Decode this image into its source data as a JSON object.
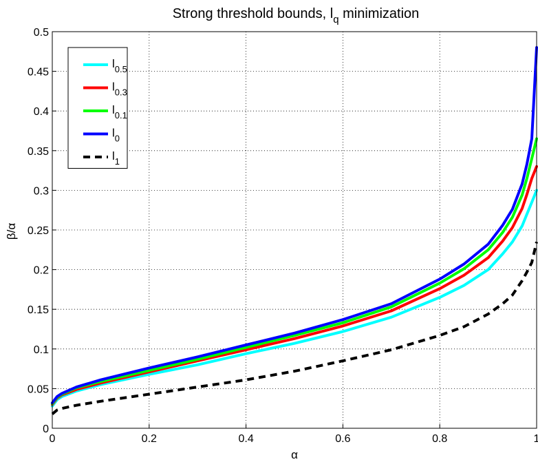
{
  "chart_data": {
    "type": "line",
    "title": {
      "main": "Strong threshold bounds, l",
      "sub": "q",
      "tail": " minimization"
    },
    "xlabel": "α",
    "ylabel": "β/α",
    "xlim": [
      0,
      1
    ],
    "ylim": [
      0,
      0.5
    ],
    "xticks": [
      0,
      0.2,
      0.4,
      0.6,
      0.8,
      1
    ],
    "xtick_labels": [
      "0",
      "0.2",
      "0.4",
      "0.6",
      "0.8",
      "1"
    ],
    "yticks": [
      0,
      0.05,
      0.1,
      0.15,
      0.2,
      0.25,
      0.3,
      0.35,
      0.4,
      0.45,
      0.5
    ],
    "ytick_labels": [
      "0",
      "0.05",
      "0.1",
      "0.15",
      "0.2",
      "0.25",
      "0.3",
      "0.35",
      "0.4",
      "0.45",
      "0.5"
    ],
    "grid": true,
    "legend_position": "top-left",
    "x": [
      0,
      0.01,
      0.02,
      0.05,
      0.1,
      0.2,
      0.3,
      0.4,
      0.5,
      0.6,
      0.7,
      0.8,
      0.85,
      0.9,
      0.93,
      0.95,
      0.97,
      0.98,
      0.99,
      1.0
    ],
    "series": [
      {
        "name": "l",
        "sub": "0.5",
        "color": "#00ffff",
        "dash": "solid",
        "values": [
          0.028,
          0.036,
          0.04,
          0.047,
          0.055,
          0.068,
          0.08,
          0.094,
          0.107,
          0.122,
          0.14,
          0.165,
          0.18,
          0.2,
          0.22,
          0.235,
          0.255,
          0.27,
          0.285,
          0.3
        ]
      },
      {
        "name": "l",
        "sub": "0.3",
        "color": "#ff0000",
        "dash": "solid",
        "values": [
          0.03,
          0.038,
          0.042,
          0.049,
          0.057,
          0.071,
          0.085,
          0.099,
          0.113,
          0.129,
          0.148,
          0.176,
          0.193,
          0.215,
          0.236,
          0.253,
          0.277,
          0.295,
          0.315,
          0.33
        ]
      },
      {
        "name": "l",
        "sub": "0.1",
        "color": "#00ff00",
        "dash": "solid",
        "values": [
          0.031,
          0.039,
          0.043,
          0.051,
          0.059,
          0.073,
          0.087,
          0.102,
          0.117,
          0.133,
          0.153,
          0.183,
          0.201,
          0.225,
          0.247,
          0.266,
          0.294,
          0.315,
          0.34,
          0.365
        ]
      },
      {
        "name": "l",
        "sub": "0",
        "color": "#0000ff",
        "dash": "solid",
        "values": [
          0.032,
          0.04,
          0.044,
          0.052,
          0.061,
          0.076,
          0.09,
          0.105,
          0.12,
          0.137,
          0.157,
          0.188,
          0.207,
          0.232,
          0.256,
          0.276,
          0.308,
          0.333,
          0.365,
          0.48
        ]
      },
      {
        "name": "l",
        "sub": "1",
        "color": "#000000",
        "dash": "dashed",
        "values": [
          0.018,
          0.023,
          0.025,
          0.029,
          0.034,
          0.043,
          0.052,
          0.061,
          0.072,
          0.085,
          0.099,
          0.117,
          0.128,
          0.144,
          0.157,
          0.168,
          0.186,
          0.197,
          0.209,
          0.235
        ]
      }
    ]
  }
}
